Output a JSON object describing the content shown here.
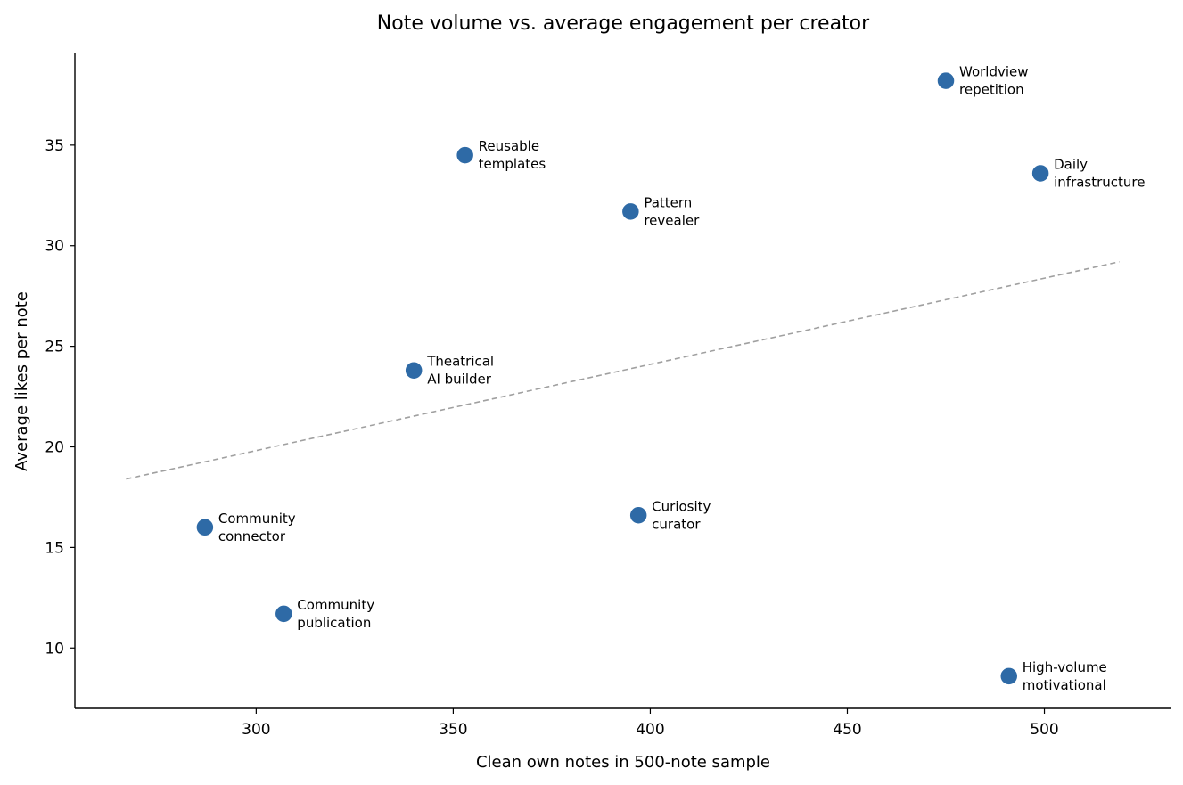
{
  "chart_data": {
    "type": "scatter",
    "title": "Note volume vs. average engagement per creator",
    "xlabel": "Clean own notes in 500-note sample",
    "ylabel": "Average likes per note",
    "xlim": [
      254,
      532
    ],
    "ylim": [
      7,
      39.6
    ],
    "xticks": [
      300,
      350,
      400,
      450,
      500
    ],
    "yticks": [
      10,
      15,
      20,
      25,
      30,
      35
    ],
    "grid": false,
    "points": [
      {
        "label": [
          "Worldview",
          "repetition"
        ],
        "x": 475,
        "y": 38.2
      },
      {
        "label": [
          "Reusable",
          "templates"
        ],
        "x": 353,
        "y": 34.5
      },
      {
        "label": [
          "Daily",
          "infrastructure"
        ],
        "x": 499,
        "y": 33.6
      },
      {
        "label": [
          "Pattern",
          "revealer"
        ],
        "x": 395,
        "y": 31.7
      },
      {
        "label": [
          "Theatrical",
          "AI builder"
        ],
        "x": 340,
        "y": 23.8
      },
      {
        "label": [
          "Curiosity",
          "curator"
        ],
        "x": 397,
        "y": 16.6
      },
      {
        "label": [
          "Community",
          "connector"
        ],
        "x": 287,
        "y": 16.0
      },
      {
        "label": [
          "Community",
          "publication"
        ],
        "x": 307,
        "y": 11.7
      },
      {
        "label": [
          "High-volume",
          "motivational"
        ],
        "x": 491,
        "y": 8.6
      }
    ],
    "trendline": {
      "x": [
        267,
        519
      ],
      "y": [
        18.4,
        29.2
      ]
    },
    "colors": {
      "points": "#2e6aa6",
      "trendline": "#a0a0a0"
    }
  }
}
